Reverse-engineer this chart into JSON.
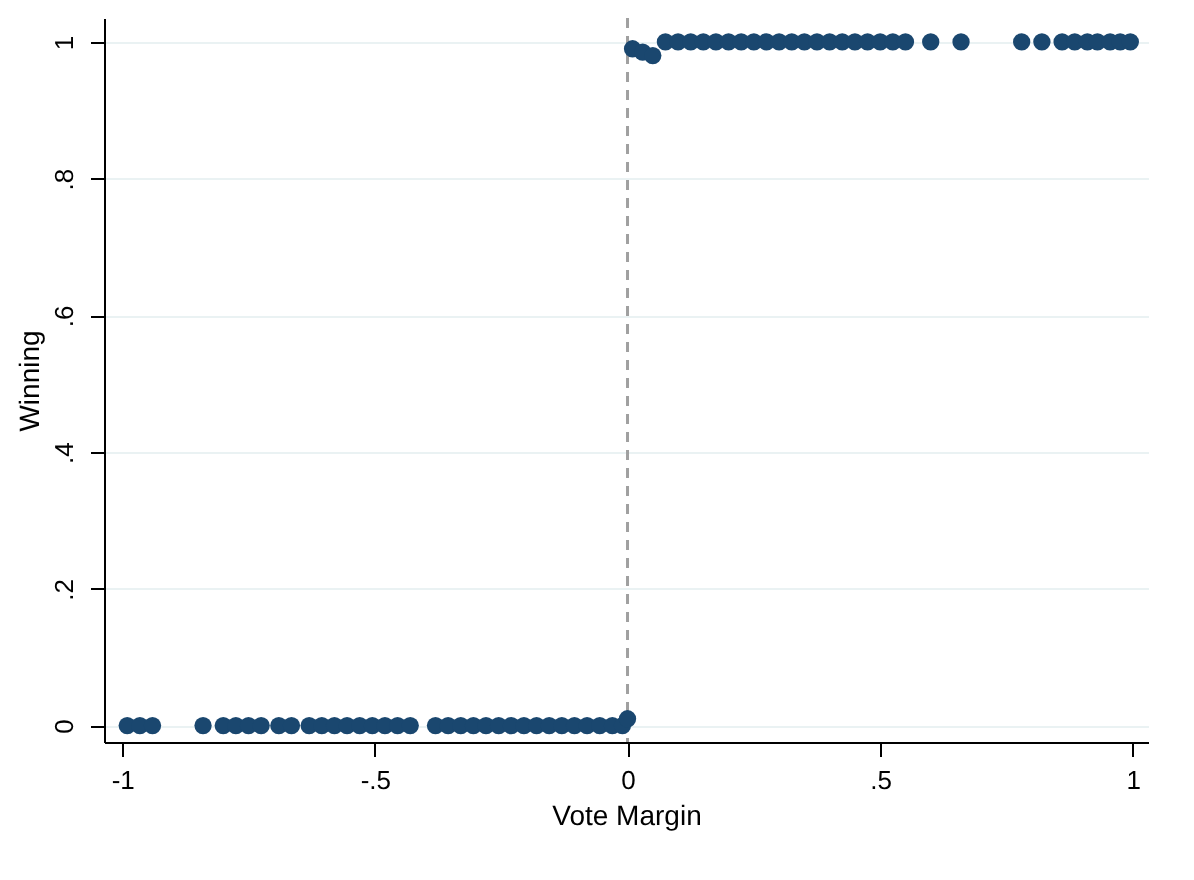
{
  "chart_data": {
    "type": "scatter",
    "xlabel": "Vote Margin",
    "ylabel": "Winning",
    "x": [
      -0.99,
      -0.965,
      -0.94,
      -0.84,
      -0.8,
      -0.775,
      -0.75,
      -0.725,
      -0.69,
      -0.665,
      -0.63,
      -0.605,
      -0.58,
      -0.555,
      -0.53,
      -0.505,
      -0.48,
      -0.455,
      -0.43,
      -0.38,
      -0.355,
      -0.33,
      -0.305,
      -0.28,
      -0.255,
      -0.23,
      -0.205,
      -0.18,
      -0.155,
      -0.13,
      -0.105,
      -0.08,
      -0.055,
      -0.03,
      -0.01,
      0.0,
      0.01,
      0.03,
      0.05,
      0.075,
      0.1,
      0.125,
      0.15,
      0.175,
      0.2,
      0.225,
      0.25,
      0.275,
      0.3,
      0.325,
      0.35,
      0.375,
      0.4,
      0.425,
      0.45,
      0.475,
      0.5,
      0.525,
      0.55,
      0.6,
      0.66,
      0.78,
      0.82,
      0.86,
      0.885,
      0.91,
      0.93,
      0.955,
      0.975,
      0.995
    ],
    "series": [
      {
        "color": "#1a476f",
        "values": [
          0,
          0,
          0,
          0,
          0,
          0,
          0,
          0,
          0,
          0,
          0,
          0,
          0,
          0,
          0,
          0,
          0,
          0,
          0,
          0,
          0,
          0,
          0,
          0,
          0,
          0,
          0,
          0,
          0,
          0,
          0,
          0,
          0,
          0,
          0,
          0.01,
          0.99,
          0.985,
          0.98,
          1,
          1,
          1,
          1,
          1,
          1,
          1,
          1,
          1,
          1,
          1,
          1,
          1,
          1,
          1,
          1,
          1,
          1,
          1,
          1,
          1,
          1,
          1,
          1,
          1,
          1,
          1,
          1,
          1,
          1,
          1
        ]
      }
    ],
    "xlim": [
      -1.036,
      1.03
    ],
    "ylim": [
      -0.024,
      1.035
    ],
    "xticks": [
      {
        "value": -1,
        "label": "-1"
      },
      {
        "value": -0.5,
        "label": "-.5"
      },
      0,
      {
        "value": 0.5,
        "label": ".5"
      },
      1
    ],
    "yticks": [
      0,
      {
        "value": 0.2,
        "label": ".2"
      },
      {
        "value": 0.4,
        "label": ".4"
      },
      {
        "value": 0.6,
        "label": ".6"
      },
      {
        "value": 0.8,
        "label": ".8"
      },
      1
    ],
    "grid": "y",
    "marker": "circle",
    "ref_lines": [
      {
        "axis": "x",
        "value": 0,
        "color": "#a0a0a0",
        "line_style": "dashed"
      }
    ]
  }
}
